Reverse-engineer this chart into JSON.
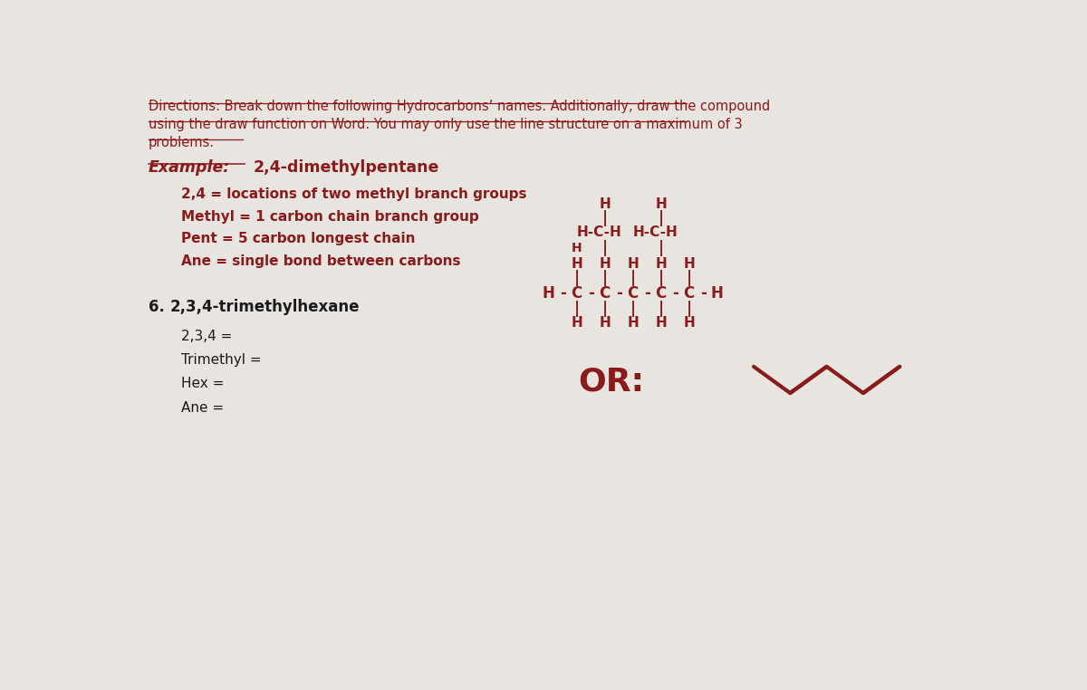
{
  "bg_color": "#e8e4df",
  "directions_line1": "Directions: Break down the following Hydrocarbons’ names. Additionally, draw the compound",
  "directions_line2": "using the draw function on Word. You may only use the line structure on a maximum of 3",
  "directions_line3": "problems.",
  "example_label": "Example:",
  "example_compound": "2,4-dimethylpentane",
  "breakdown_lines": [
    "2,4 = locations of two methyl branch groups",
    "Methyl = 1 carbon chain branch group",
    "Pent = 5 carbon longest chain",
    "Ane = single bond between carbons"
  ],
  "problem6_number": "6.",
  "problem6_compound": "2,3,4-trimethylhexane",
  "problem6_lines": [
    "2,3,4 =",
    "Trimethyl =",
    "Hex =",
    "Ane ="
  ],
  "red": "#8B1A1A",
  "black": "#1a1a1a",
  "bg": "#e8e4df"
}
